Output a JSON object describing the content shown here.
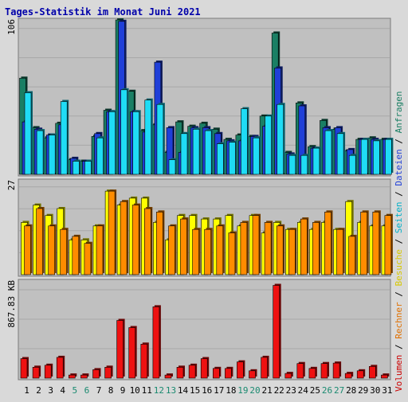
{
  "chart_data": [
    {
      "type": "bar",
      "title": "Tages-Statistik im Monat Juni 2021",
      "ymax_label": "106",
      "ylim": [
        0,
        106
      ],
      "categories": [
        "1",
        "2",
        "3",
        "4",
        "5",
        "6",
        "7",
        "8",
        "9",
        "10",
        "11",
        "12",
        "13",
        "14",
        "15",
        "16",
        "17",
        "18",
        "19",
        "20",
        "21",
        "22",
        "23",
        "24",
        "25",
        "26",
        "27",
        "28",
        "29",
        "30",
        "31"
      ],
      "weekend_days": [
        "5",
        "6",
        "12",
        "13",
        "19",
        "20",
        "26",
        "27"
      ],
      "series": [
        {
          "name": "Anfragen",
          "color": "#1a7f64",
          "values": [
            66,
            32,
            25,
            35,
            10,
            9,
            26,
            44,
            106,
            57,
            30,
            34,
            15,
            36,
            33,
            35,
            31,
            24,
            27,
            26,
            40,
            97,
            15,
            49,
            19,
            37,
            31,
            16,
            24,
            25,
            24
          ]
        },
        {
          "name": "Dateien",
          "color": "#1f3fd8",
          "values": [
            36,
            31,
            27,
            34,
            11,
            9,
            28,
            43,
            105,
            43,
            29,
            77,
            32,
            15,
            32,
            32,
            28,
            23,
            23,
            26,
            33,
            73,
            14,
            47,
            18,
            32,
            32,
            17,
            24,
            24,
            24
          ]
        },
        {
          "name": "Seiten",
          "color": "#1fdcf5",
          "values": [
            56,
            30,
            27,
            50,
            9,
            9,
            25,
            43,
            58,
            43,
            51,
            48,
            10,
            28,
            31,
            30,
            21,
            22,
            45,
            25,
            40,
            48,
            13,
            13,
            18,
            30,
            28,
            13,
            24,
            23,
            24
          ]
        }
      ]
    },
    {
      "type": "bar",
      "ymax_label": "27",
      "ylim": [
        0,
        27
      ],
      "categories": [
        "1",
        "2",
        "3",
        "4",
        "5",
        "6",
        "7",
        "8",
        "9",
        "10",
        "11",
        "12",
        "13",
        "14",
        "15",
        "16",
        "17",
        "18",
        "19",
        "20",
        "21",
        "22",
        "23",
        "24",
        "25",
        "26",
        "27",
        "28",
        "29",
        "30",
        "31"
      ],
      "series": [
        {
          "name": "Besuche",
          "color": "#ffff00",
          "values": [
            15,
            20,
            17,
            19,
            10,
            10,
            14,
            24,
            20,
            22,
            22,
            15,
            10,
            17,
            17,
            16,
            16,
            17,
            14,
            17,
            12,
            15,
            13,
            15,
            13,
            15,
            13,
            21,
            15,
            14,
            14
          ]
        },
        {
          "name": "Rechner",
          "color": "#ff8c00",
          "values": [
            14,
            19,
            14,
            13,
            11,
            9,
            14,
            24,
            21,
            20,
            19,
            18,
            14,
            16,
            13,
            13,
            14,
            12,
            15,
            17,
            15,
            14,
            13,
            16,
            15,
            18,
            13,
            11,
            18,
            18,
            17
          ]
        }
      ]
    },
    {
      "type": "bar",
      "ymax_label": "867.83 KB",
      "ylim": [
        0,
        1262
      ],
      "categories": [
        "1",
        "2",
        "3",
        "4",
        "5",
        "6",
        "7",
        "8",
        "9",
        "10",
        "11",
        "12",
        "13",
        "14",
        "15",
        "16",
        "17",
        "18",
        "19",
        "20",
        "21",
        "22",
        "23",
        "24",
        "25",
        "26",
        "27",
        "28",
        "29",
        "30",
        "31"
      ],
      "series": [
        {
          "name": "Volumen",
          "color": "#ee1111",
          "values": [
            253,
            142,
            168,
            270,
            40,
            40,
            110,
            142,
            750,
            657,
            442,
            927,
            40,
            142,
            168,
            253,
            126,
            126,
            211,
            95,
            270,
            1205,
            61,
            189,
            126,
            189,
            195,
            61,
            95,
            152,
            40
          ]
        }
      ]
    }
  ],
  "legend": {
    "separator": " / ",
    "items": [
      {
        "label": "Volumen",
        "color": "#cc0000"
      },
      {
        "label": "Rechner",
        "color": "#e07000"
      },
      {
        "label": "Besuche",
        "color": "#d8c800"
      },
      {
        "label": "Seiten",
        "color": "#00b0c8"
      },
      {
        "label": "Dateien",
        "color": "#1f3fd8"
      },
      {
        "label": "Anfragen",
        "color": "#1a7f64"
      }
    ]
  },
  "colors": {
    "background": "#d9d9d9",
    "panel": "#c0c0c0",
    "grid": "#a8a8a8",
    "title": "#0000aa",
    "weekend_label": "#1a8a70",
    "weekday_label": "#000000"
  }
}
